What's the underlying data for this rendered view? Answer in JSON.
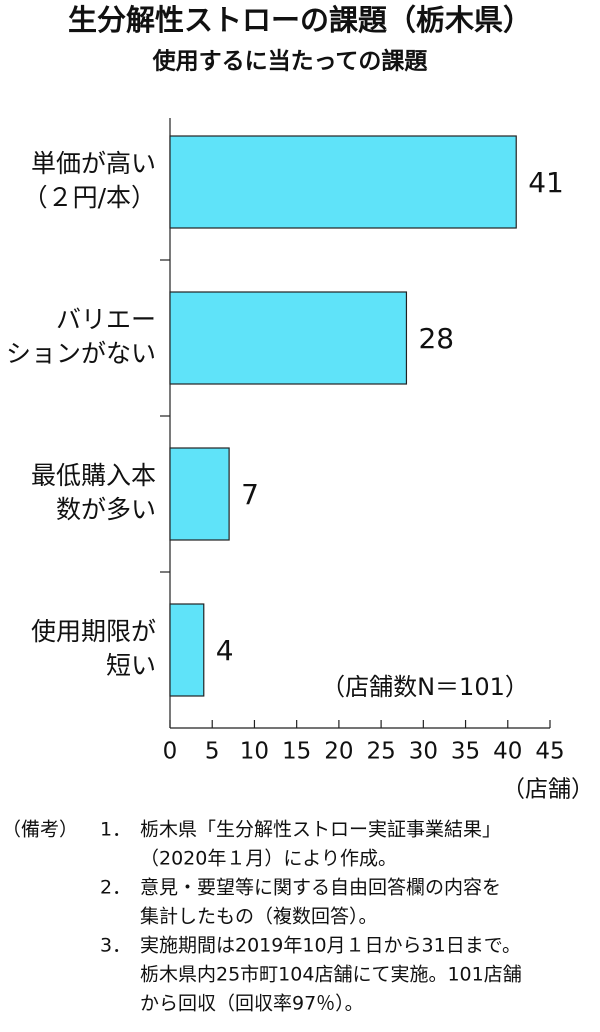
{
  "chart_data": {
    "type": "hbar",
    "title": "生分解性ストローの課題（栃木県）",
    "subtitle": "使用するに当たっての課題",
    "categories": [
      [
        "単価が高い",
        "（２円/本）"
      ],
      [
        "バリエー",
        "ションがない"
      ],
      [
        "最低購入本",
        "数が多い"
      ],
      [
        "使用期限が",
        "短い"
      ]
    ],
    "values": [
      41,
      28,
      7,
      4
    ],
    "color": "#5fe3f9",
    "xlim": [
      0,
      45
    ],
    "xticks": [
      0,
      5,
      10,
      15,
      20,
      25,
      30,
      35,
      40,
      45
    ],
    "x_label": "（店舗）",
    "annotation": "（店舗数N＝101）"
  },
  "notes": {
    "label": "（備考）",
    "items": [
      {
        "number": "1．",
        "lines": [
          "栃木県「生分解性ストロー実証事業結果」",
          "（2020年１月）により作成。"
        ]
      },
      {
        "number": "2．",
        "lines": [
          "意見・要望等に関する自由回答欄の内容を",
          "集計したもの（複数回答）。"
        ]
      },
      {
        "number": "3．",
        "lines": [
          "実施期間は2019年10月１日から31日まで。",
          "栃木県内25市町104店舗にて実施。101店舗",
          "から回収（回収率97％）。"
        ]
      }
    ]
  }
}
